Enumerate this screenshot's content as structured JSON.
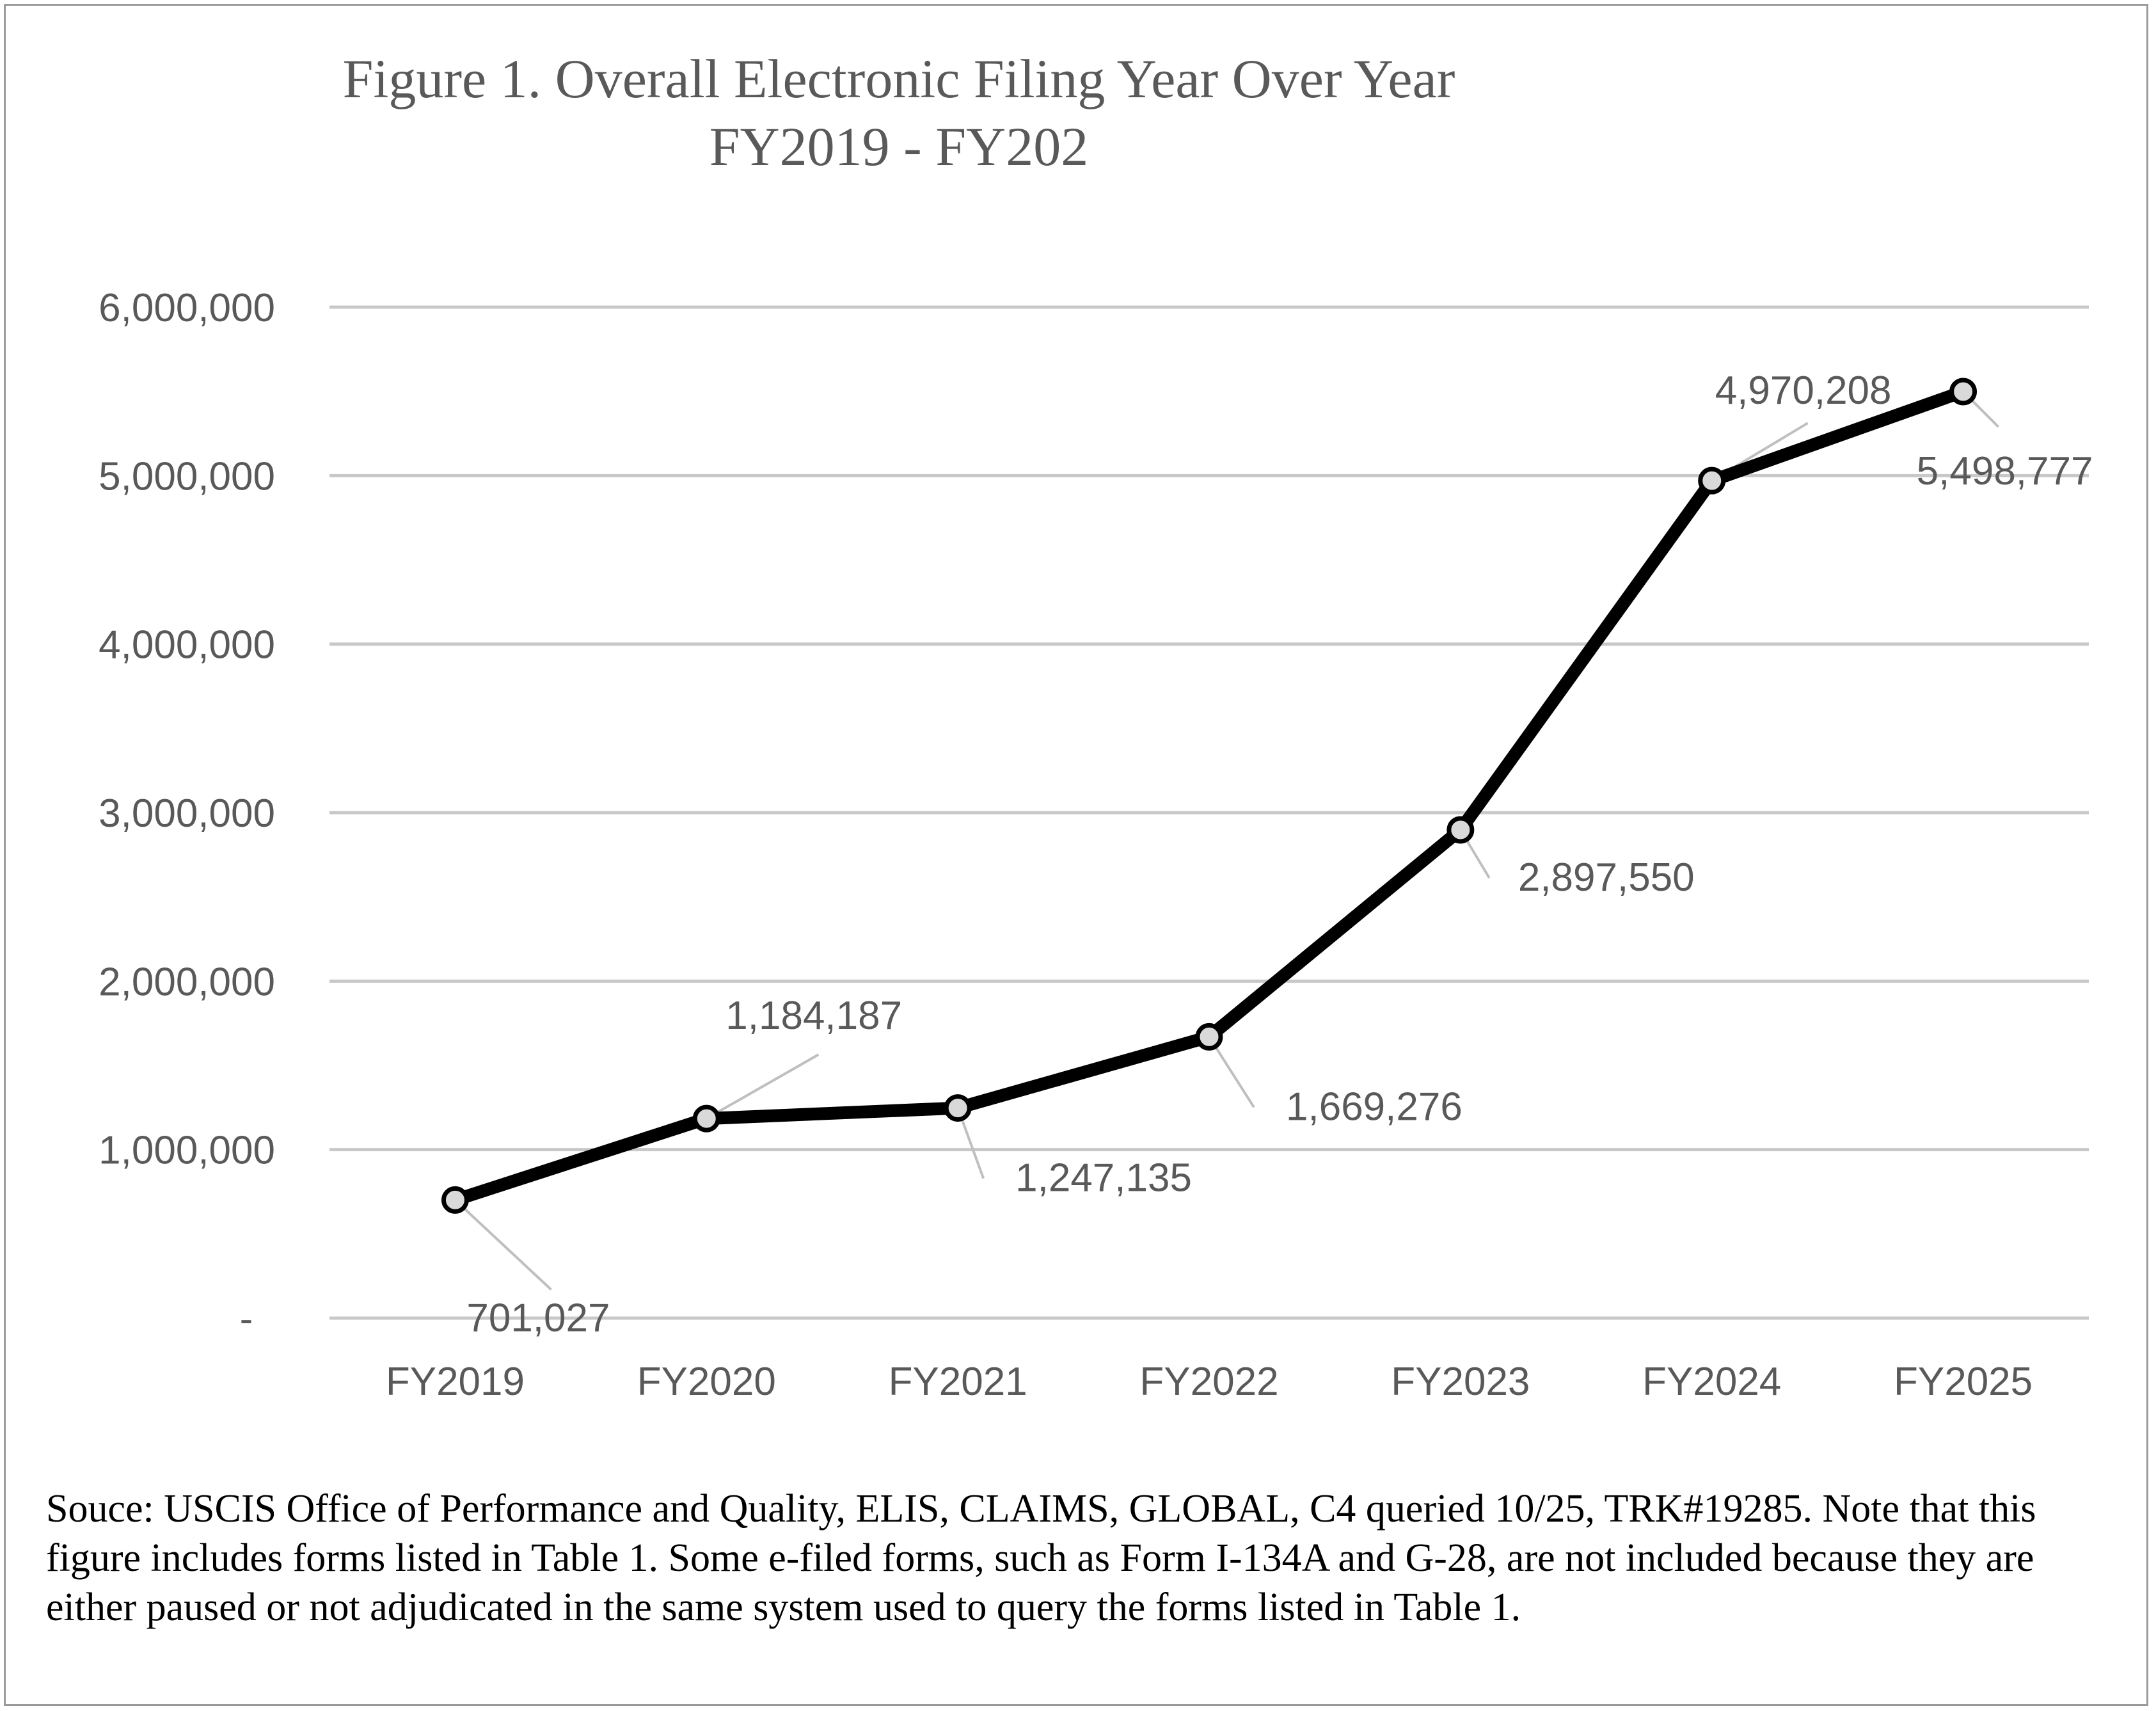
{
  "chart_data": {
    "type": "line",
    "title": "Figure 1. Overall Electronic Filing Year Over Year",
    "subtitle": "FY2019 - FY202",
    "categories": [
      "FY2019",
      "FY2020",
      "FY2021",
      "FY2022",
      "FY2023",
      "FY2024",
      "FY2025"
    ],
    "series": [
      {
        "values": [
          701027,
          1184187,
          1247135,
          1669276,
          2897550,
          4970208,
          5498777
        ],
        "data_labels": [
          "701,027",
          "1,184,187",
          "1,247,135",
          "1,669,276",
          "2,897,550",
          "4,970,208",
          "5,498,777"
        ]
      }
    ],
    "ylim": [
      0,
      6000000
    ],
    "y_ticks": [
      0,
      1000000,
      2000000,
      3000000,
      4000000,
      5000000,
      6000000
    ],
    "y_tick_labels": [
      "-",
      "1,000,000",
      "2,000,000",
      "3,000,000",
      "4,000,000",
      "5,000,000",
      "6,000,000"
    ],
    "grid": true,
    "legend": "none",
    "colors": {
      "line": "#000000",
      "marker_fill": "#d9d9d9",
      "grid": "#c8c8c8",
      "axis_text": "#595959",
      "title_text": "#595959"
    }
  },
  "caption": "Souce: USCIS Office of Performance and Quality, ELIS, CLAIMS, GLOBAL, C4 queried 10/25, TRK#19285. Note that this figure includes forms listed in Table 1. Some e-filed forms, such as Form I-134A and G-28, are not included because they are either paused or not adjudicated in the same system used to query the forms listed in Table 1."
}
